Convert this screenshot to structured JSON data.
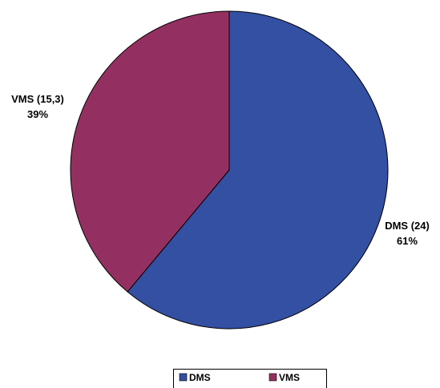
{
  "chart_data": {
    "type": "pie",
    "slices": [
      {
        "name": "DMS",
        "value": 24,
        "value_label": "(24)",
        "percent_label": "61%",
        "color": "#3450a3"
      },
      {
        "name": "VMS",
        "value": 15.3,
        "value_label": "(15,3)",
        "percent_label": "39%",
        "color": "#943061"
      }
    ],
    "legend": {
      "placement": "bottom",
      "entries": [
        "DMS",
        "VMS"
      ]
    }
  }
}
